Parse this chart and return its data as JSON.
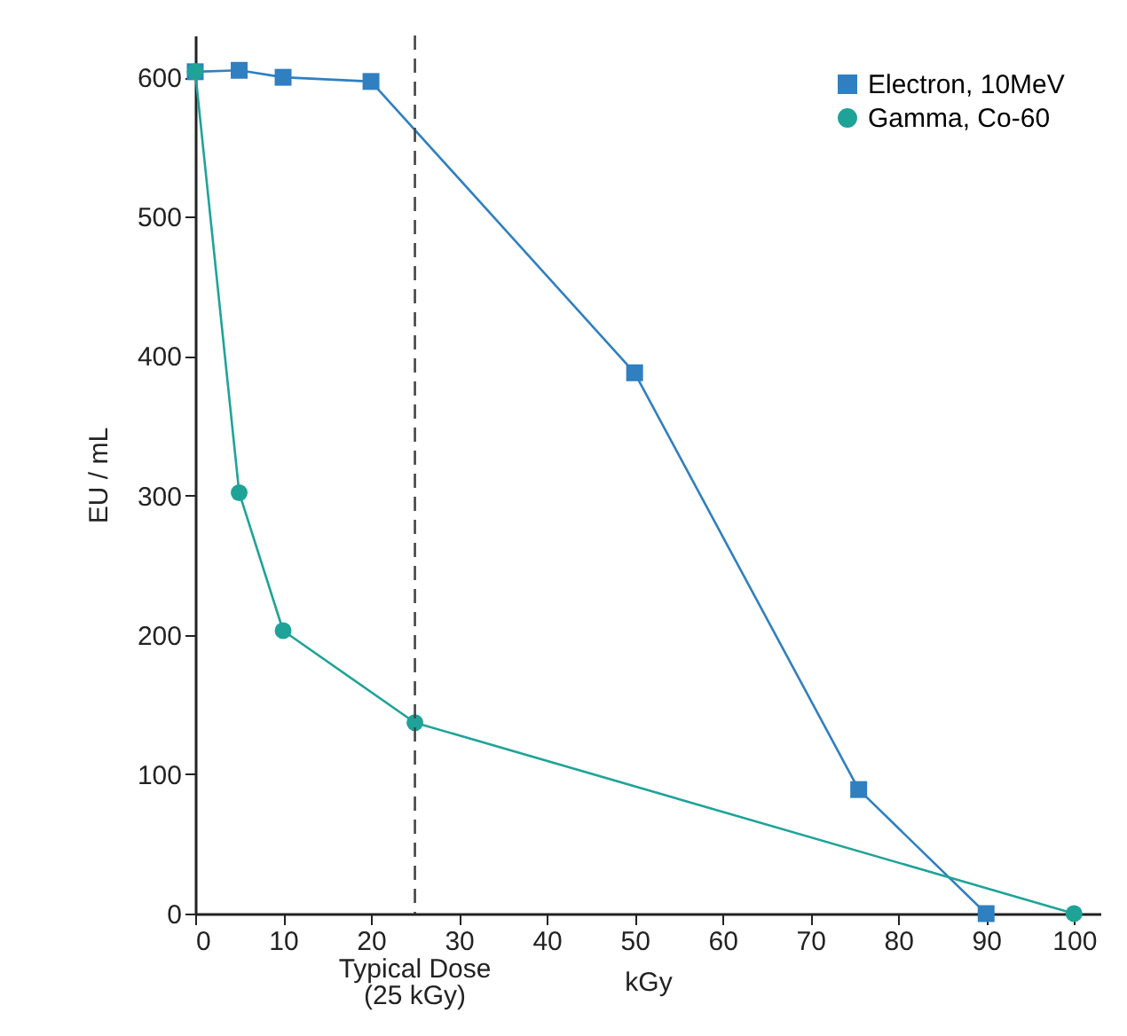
{
  "chart_data": {
    "type": "line",
    "xlabel": "kGy",
    "ylabel": "EU / mL",
    "xlim": [
      0,
      103
    ],
    "ylim": [
      0,
      630
    ],
    "xticks": [
      0,
      10,
      20,
      30,
      40,
      50,
      60,
      70,
      80,
      90,
      100
    ],
    "yticks": [
      0,
      100,
      200,
      300,
      400,
      500,
      600
    ],
    "grid": false,
    "legend": "top right",
    "series": [
      {
        "name": "Electron, 10MeV",
        "color": "#2f7fc1",
        "marker": "square",
        "x": [
          0,
          5,
          10,
          20,
          50,
          75.5,
          90
        ],
        "values": [
          604,
          605,
          600,
          597,
          388,
          89,
          0
        ]
      },
      {
        "name": "Gamma, Co-60",
        "color": "#1fa398",
        "marker": "circle",
        "x": [
          0,
          5,
          10,
          25,
          100
        ],
        "values": [
          604,
          302,
          203,
          137,
          0
        ]
      }
    ],
    "ref_lines": [
      {
        "axis": "x",
        "value": 25,
        "label": "Typical Dose\n(25 kGy)",
        "color": "#444444",
        "line_style": "dashed"
      }
    ]
  }
}
